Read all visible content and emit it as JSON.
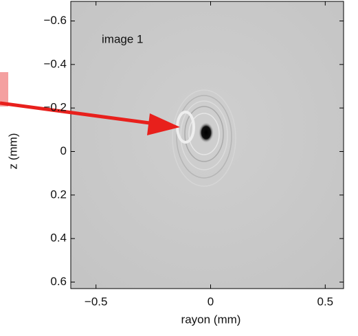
{
  "chart_data": {
    "type": "image",
    "annotation": "image 1",
    "xlabel": "rayon (mm)",
    "ylabel": "z (mm)",
    "xlim": [
      -0.61,
      0.58
    ],
    "xticks": [
      {
        "value": -0.5,
        "label": "−0.5"
      },
      0,
      0.5
    ],
    "ylim": [
      -0.69,
      0.63
    ],
    "y_reversed": true,
    "yticks": [
      {
        "value": -0.6,
        "label": "−0.6"
      },
      {
        "value": -0.4,
        "label": "−0.4"
      },
      {
        "value": -0.2,
        "label": "−0.2"
      },
      0,
      0.2,
      0.4,
      0.6
    ]
  }
}
